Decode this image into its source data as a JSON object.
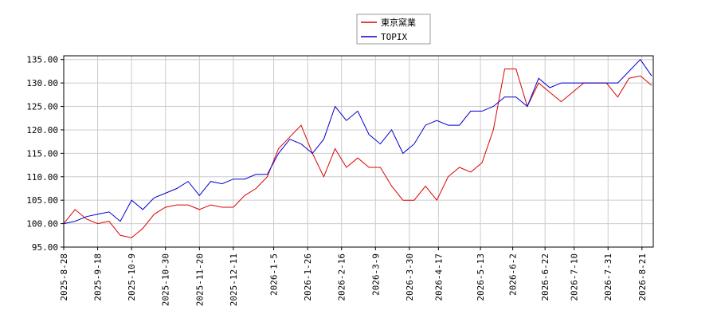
{
  "chart_data": {
    "type": "line",
    "x": [
      "2025-8-28",
      "2025-9-4",
      "2025-9-11",
      "2025-9-18",
      "2025-9-25",
      "2025-10-2",
      "2025-10-9",
      "2025-10-16",
      "2025-10-23",
      "2025-10-30",
      "2025-11-6",
      "2025-11-13",
      "2025-11-20",
      "2025-11-27",
      "2025-12-4",
      "2025-12-11",
      "2025-12-18",
      "2025-12-25",
      "2026-1-1",
      "2026-1-8",
      "2026-1-15",
      "2026-1-22",
      "2026-1-29",
      "2026-2-5",
      "2026-2-12",
      "2026-2-19",
      "2026-2-26",
      "2026-3-5",
      "2026-3-12",
      "2026-3-19",
      "2026-3-26",
      "2026-4-2",
      "2026-4-9",
      "2026-4-16",
      "2026-4-23",
      "2026-4-30",
      "2026-5-7",
      "2026-5-14",
      "2026-5-21",
      "2026-5-28",
      "2026-6-4",
      "2026-6-11",
      "2026-6-18",
      "2026-6-25",
      "2026-7-2",
      "2026-7-9",
      "2026-7-16",
      "2026-7-23",
      "2026-7-30",
      "2026-8-6",
      "2026-8-13",
      "2026-8-20",
      "2026-8-27"
    ],
    "series": [
      {
        "name": "東京窯業",
        "color": "#dd0000",
        "values": [
          100,
          103,
          101,
          100,
          100.5,
          97.5,
          97,
          99,
          102,
          103.5,
          104,
          104,
          103,
          104,
          103.5,
          103.5,
          106,
          107.5,
          110,
          116,
          118.5,
          121,
          115,
          110,
          116,
          112,
          114,
          112,
          112,
          108,
          105,
          105,
          108,
          105,
          110,
          112,
          111,
          113,
          120,
          133,
          133,
          125,
          130,
          128,
          126,
          128,
          130,
          130,
          130,
          127,
          131,
          131.5,
          129.5
        ]
      },
      {
        "name": "TOPIX",
        "color": "#0000cc",
        "values": [
          100,
          100.5,
          101.5,
          102,
          102.5,
          100.5,
          105,
          103,
          105.5,
          106.5,
          107.5,
          109,
          106,
          109,
          108.5,
          109.5,
          109.5,
          110.5,
          110.5,
          115,
          118,
          117,
          115,
          118,
          125,
          122,
          124,
          119,
          117,
          120,
          115,
          117,
          121,
          122,
          121,
          121,
          124,
          124,
          125,
          127,
          127,
          125,
          131,
          129,
          130,
          130,
          130,
          130,
          130,
          130,
          132.5,
          135,
          131.5
        ]
      }
    ],
    "xlim": [
      "2025-8-28",
      "2026-8-28"
    ],
    "xticks": [
      "2025-8-28",
      "2025-9-18",
      "2025-10-9",
      "2025-10-30",
      "2025-11-20",
      "2025-12-11",
      "2026-1-5",
      "2026-1-26",
      "2026-2-16",
      "2026-3-9",
      "2026-3-30",
      "2026-4-17",
      "2026-5-13",
      "2026-6-2",
      "2026-6-22",
      "2026-7-10",
      "2026-7-31",
      "2026-8-21"
    ],
    "ylim": [
      95,
      135.8
    ],
    "yticks": [
      {
        "value": 95,
        "label": "95.00"
      },
      {
        "value": 100,
        "label": "100.00"
      },
      {
        "value": 105,
        "label": "105.00"
      },
      {
        "value": 110,
        "label": "110.00"
      },
      {
        "value": 115,
        "label": "115.00"
      },
      {
        "value": 120,
        "label": "120.00"
      },
      {
        "value": 125,
        "label": "125.00"
      },
      {
        "value": 130,
        "label": "130.00"
      },
      {
        "value": 135,
        "label": "135.00"
      }
    ],
    "grid": true,
    "legend": "top"
  }
}
